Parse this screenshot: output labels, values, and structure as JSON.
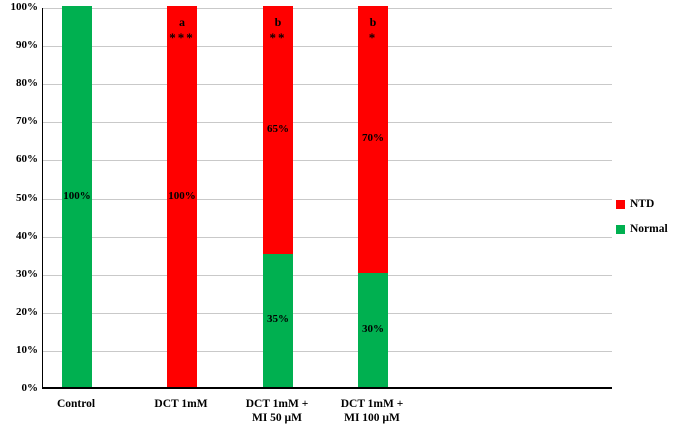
{
  "chart_data": {
    "type": "bar",
    "subtype": "100-percent-stacked-column",
    "title": "",
    "xlabel": "",
    "ylabel": "",
    "ylim": [
      0,
      100
    ],
    "grid": true,
    "legend_position": "right",
    "categories": [
      "Control",
      "DCT 1mM",
      "DCT 1mM +\nMI 50 µM",
      "DCT 1mM +\nMI 100 µM"
    ],
    "y_ticks": [
      "0%",
      "10%",
      "20%",
      "30%",
      "40%",
      "50%",
      "60%",
      "70%",
      "80%",
      "90%",
      "100%"
    ],
    "series": [
      {
        "name": "Normal",
        "color": "#00B050",
        "values": [
          100,
          0,
          35,
          30
        ]
      },
      {
        "name": "NTD",
        "color": "#FF0000",
        "values": [
          0,
          100,
          65,
          70
        ]
      }
    ],
    "data_labels": [
      "100%",
      "100%",
      "65%",
      "35%",
      "70%",
      "30%"
    ],
    "annotations": [
      {
        "category_index": 1,
        "letter": "a",
        "stars": "***"
      },
      {
        "category_index": 2,
        "letter": "b",
        "stars": "**"
      },
      {
        "category_index": 3,
        "letter": "b",
        "stars": "*"
      }
    ],
    "legend": [
      {
        "label": "NTD",
        "color": "#FF0000"
      },
      {
        "label": "Normal",
        "color": "#00B050"
      }
    ]
  }
}
